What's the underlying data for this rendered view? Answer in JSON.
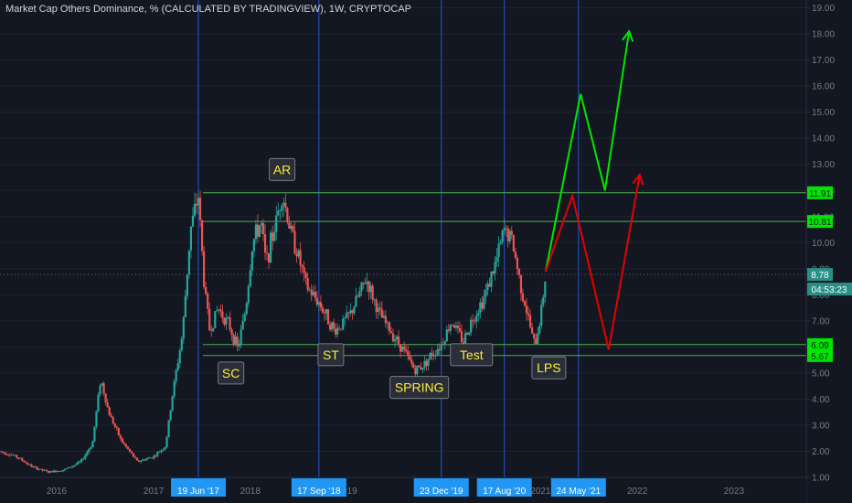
{
  "header": {
    "title": "Market Cap Others Dominance, % (CALCULATED BY TRADINGVIEW), 1W, CRYPTOCAP"
  },
  "colors": {
    "background": "#131722",
    "up_candle": "#26a69a",
    "down_candle": "#ef5350",
    "level_line": "#4caf50",
    "level_label_bg": "#00e600",
    "vline": "#2962ff",
    "date_label_bg": "#2196f3",
    "annotation_text": "#ffeb3b",
    "annotation_bg": "#2a2e39",
    "green_arrow": "#00e600",
    "red_arrow": "#e60000",
    "axis_text": "#787b86"
  },
  "chart_data": {
    "type": "candlestick",
    "x_range": [
      "2015-06-01",
      "2023-10-01"
    ],
    "y_range": [
      1.0,
      19.3
    ],
    "y_ticks": [
      "1.00",
      "2.00",
      "3.00",
      "4.00",
      "5.00",
      "6.00",
      "7.00",
      "8.00",
      "9.00",
      "10.00",
      "11.00",
      "12.00",
      "13.00",
      "14.00",
      "15.00",
      "16.00",
      "17.00",
      "18.00",
      "19.00"
    ],
    "x_tick_labels": [
      {
        "label": "2016",
        "date": "2016-01-01"
      },
      {
        "label": "2017",
        "date": "2017-01-01"
      },
      {
        "label": "2018",
        "date": "2018-01-01"
      },
      {
        "label": "2019",
        "date": "2019-01-01"
      },
      {
        "label": "2021",
        "date": "2021-01-01"
      },
      {
        "label": "2022",
        "date": "2022-01-01"
      },
      {
        "label": "2023",
        "date": "2023-01-01"
      }
    ],
    "series_path": [
      [
        "2015-06-01",
        2.0
      ],
      [
        "2015-08-01",
        1.8
      ],
      [
        "2015-10-01",
        1.4
      ],
      [
        "2015-12-01",
        1.2
      ],
      [
        "2016-02-01",
        1.3
      ],
      [
        "2016-04-01",
        1.6
      ],
      [
        "2016-05-15",
        2.3
      ],
      [
        "2016-06-15",
        4.8
      ],
      [
        "2016-07-15",
        3.5
      ],
      [
        "2016-09-01",
        2.4
      ],
      [
        "2016-11-01",
        1.6
      ],
      [
        "2017-01-01",
        1.8
      ],
      [
        "2017-02-15",
        2.2
      ],
      [
        "2017-03-15",
        4.3
      ],
      [
        "2017-04-20",
        6.5
      ],
      [
        "2017-05-20",
        10.5
      ],
      [
        "2017-06-19",
        11.8
      ],
      [
        "2017-07-10",
        8.5
      ],
      [
        "2017-08-01",
        6.6
      ],
      [
        "2017-09-01",
        7.5
      ],
      [
        "2017-10-15",
        6.8
      ],
      [
        "2017-11-15",
        5.9
      ],
      [
        "2017-12-15",
        7.5
      ],
      [
        "2018-01-10",
        10.0
      ],
      [
        "2018-02-10",
        10.8
      ],
      [
        "2018-03-01",
        9.2
      ],
      [
        "2018-04-01",
        10.5
      ],
      [
        "2018-05-01",
        11.9
      ],
      [
        "2018-06-01",
        10.5
      ],
      [
        "2018-07-01",
        9.5
      ],
      [
        "2018-08-01",
        8.3
      ],
      [
        "2018-09-17",
        7.7
      ],
      [
        "2018-10-15",
        7.2
      ],
      [
        "2018-11-15",
        6.6
      ],
      [
        "2018-12-15",
        6.9
      ],
      [
        "2019-01-15",
        7.3
      ],
      [
        "2019-02-15",
        8.0
      ],
      [
        "2019-03-15",
        8.6
      ],
      [
        "2019-05-01",
        7.3
      ],
      [
        "2019-06-15",
        6.6
      ],
      [
        "2019-08-01",
        5.9
      ],
      [
        "2019-09-15",
        5.1
      ],
      [
        "2019-10-15",
        5.3
      ],
      [
        "2019-11-15",
        5.7
      ],
      [
        "2019-12-23",
        6.1
      ],
      [
        "2020-02-01",
        7.0
      ],
      [
        "2020-03-15",
        6.2
      ],
      [
        "2020-04-15",
        7.0
      ],
      [
        "2020-06-01",
        7.9
      ],
      [
        "2020-07-15",
        9.2
      ],
      [
        "2020-08-17",
        10.5
      ],
      [
        "2020-09-15",
        10.1
      ],
      [
        "2020-10-15",
        8.5
      ],
      [
        "2020-11-15",
        7.1
      ],
      [
        "2020-12-10",
        6.0
      ],
      [
        "2021-01-01",
        7.2
      ],
      [
        "2021-01-20",
        8.78
      ]
    ],
    "horizontal_levels": [
      {
        "value": 11.91,
        "label": "11.91"
      },
      {
        "value": 10.81,
        "label": "10.81"
      },
      {
        "value": 6.09,
        "label": "6.09"
      },
      {
        "value": 5.67,
        "label": "5.67"
      }
    ],
    "current_price": {
      "value": "8.78",
      "countdown": "04:53:23"
    },
    "vertical_lines": [
      {
        "date": "2017-06-19",
        "label": "19 Jun '17"
      },
      {
        "date": "2018-09-17",
        "label": "17 Sep '18"
      },
      {
        "date": "2019-12-23",
        "label": "23 Dec '19"
      },
      {
        "date": "2020-08-17",
        "label": "17 Aug '20"
      },
      {
        "date": "2021-05-24",
        "label": "24 May '21"
      }
    ],
    "annotations": [
      {
        "text": "SC",
        "date": "2017-10-20",
        "value": 5.0
      },
      {
        "text": "AR",
        "date": "2018-05-01",
        "value": 12.8
      },
      {
        "text": "ST",
        "date": "2018-11-01",
        "value": 5.7
      },
      {
        "text": "SPRING",
        "date": "2019-10-01",
        "value": 4.45
      },
      {
        "text": "Test",
        "date": "2020-04-15",
        "value": 5.7
      },
      {
        "text": "LPS",
        "date": "2021-02-01",
        "value": 5.2
      }
    ],
    "projections": {
      "green": [
        [
          "2021-01-20",
          8.9
        ],
        [
          "2021-06-01",
          15.7
        ],
        [
          "2021-09-01",
          12.0
        ],
        [
          "2021-12-01",
          18.1
        ]
      ],
      "red": [
        [
          "2021-01-20",
          8.9
        ],
        [
          "2021-05-01",
          11.8
        ],
        [
          "2021-09-15",
          5.9
        ],
        [
          "2022-01-10",
          12.6
        ]
      ]
    }
  }
}
